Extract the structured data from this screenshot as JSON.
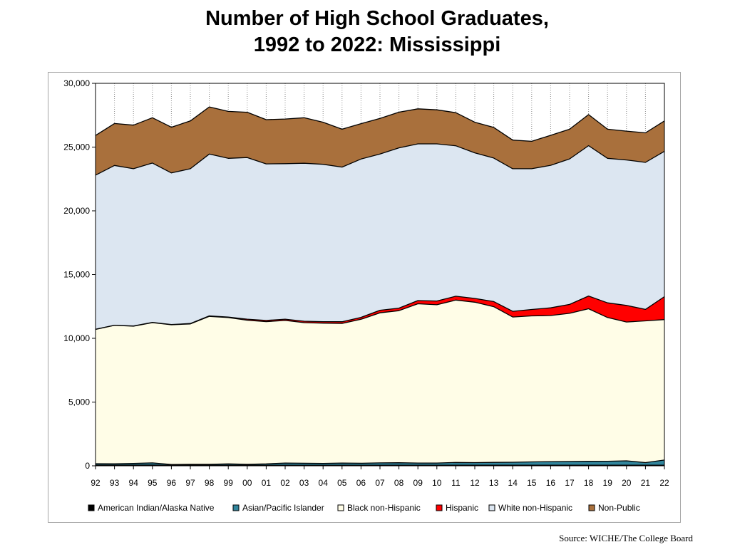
{
  "title_lines": [
    "Number of High School Graduates,",
    "1992 to 2022:  Mississippi"
  ],
  "source": "Source: WICHE/The College Board",
  "chart_data": {
    "type": "area",
    "stacked": true,
    "categories": [
      "92",
      "93",
      "94",
      "95",
      "96",
      "97",
      "98",
      "99",
      "00",
      "01",
      "02",
      "03",
      "04",
      "05",
      "06",
      "07",
      "08",
      "09",
      "10",
      "11",
      "12",
      "13",
      "14",
      "15",
      "16",
      "17",
      "18",
      "19",
      "20",
      "21",
      "22"
    ],
    "ylim": [
      0,
      30000
    ],
    "yticks": [
      0,
      5000,
      10000,
      15000,
      20000,
      25000,
      30000
    ],
    "ytick_labels": [
      "0",
      "5,000",
      "10,000",
      "15,000",
      "20,000",
      "25,000",
      "30,000"
    ],
    "legend_position": "bottom",
    "series": [
      {
        "name": "American Indian/Alaska  Native",
        "color": "#000000",
        "values": [
          60,
          60,
          60,
          60,
          50,
          50,
          50,
          50,
          50,
          50,
          50,
          50,
          50,
          50,
          50,
          50,
          50,
          50,
          50,
          50,
          50,
          50,
          50,
          50,
          50,
          50,
          50,
          50,
          50,
          50,
          50
        ]
      },
      {
        "name": "Asian/Pacific Islander",
        "color": "#31859c",
        "values": [
          110,
          100,
          130,
          170,
          50,
          70,
          70,
          100,
          70,
          100,
          170,
          150,
          140,
          170,
          150,
          180,
          190,
          170,
          170,
          210,
          200,
          220,
          230,
          260,
          280,
          290,
          300,
          310,
          340,
          200,
          400
        ]
      },
      {
        "name": "Black non-Hispanic",
        "color": "#fffde7",
        "values": [
          10530,
          10860,
          10760,
          11000,
          10960,
          11010,
          11600,
          11480,
          11300,
          11160,
          11180,
          11030,
          11000,
          10950,
          11290,
          11770,
          11930,
          12490,
          12410,
          12740,
          12580,
          12210,
          11390,
          11450,
          11460,
          11620,
          11970,
          11270,
          10890,
          11120,
          11020
        ]
      },
      {
        "name": "Hispanic",
        "color": "#ff0000",
        "values": [
          10,
          10,
          20,
          20,
          20,
          30,
          40,
          40,
          80,
          90,
          100,
          110,
          120,
          130,
          150,
          200,
          200,
          250,
          300,
          300,
          300,
          400,
          450,
          500,
          600,
          700,
          1000,
          1150,
          1300,
          900,
          1800
        ]
      },
      {
        "name": "White non-Hispanic",
        "color": "#dce6f1",
        "values": [
          12090,
          12530,
          12330,
          12500,
          11890,
          12140,
          12690,
          12450,
          12680,
          12280,
          12200,
          12390,
          12340,
          12130,
          12420,
          12250,
          12570,
          12290,
          12320,
          11800,
          11420,
          11260,
          11180,
          11040,
          11180,
          11410,
          11790,
          11340,
          11410,
          11530,
          11400
        ]
      },
      {
        "name": "Non-Public",
        "color": "#a9703c",
        "values": [
          3110,
          3290,
          3420,
          3550,
          3590,
          3750,
          3700,
          3680,
          3550,
          3470,
          3500,
          3570,
          3300,
          2970,
          2780,
          2800,
          2800,
          2750,
          2670,
          2600,
          2400,
          2400,
          2250,
          2150,
          2350,
          2330,
          2440,
          2280,
          2260,
          2320,
          2380
        ]
      }
    ]
  }
}
